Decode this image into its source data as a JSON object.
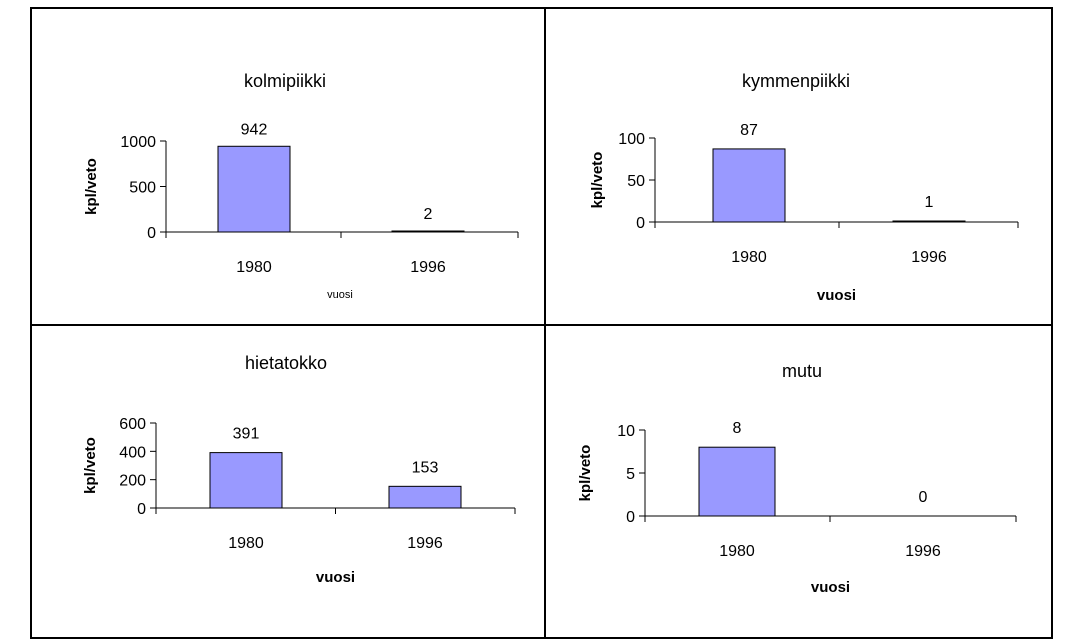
{
  "colors": {
    "bar_fill": "#9999ff",
    "bar_stroke": "#000000",
    "border": "#000000"
  },
  "chart_data": [
    {
      "type": "bar",
      "title": "kolmipiikki",
      "categories": [
        "1980",
        "1996"
      ],
      "values": [
        942,
        2
      ],
      "data_labels": [
        "942",
        "2"
      ],
      "ylim": [
        0,
        1000
      ],
      "yticks": [
        0,
        500,
        1000
      ],
      "ylabel": "kpl/veto",
      "xlabel": "vuosi",
      "grid": false
    },
    {
      "type": "bar",
      "title": "kymmenpiikki",
      "categories": [
        "1980",
        "1996"
      ],
      "values": [
        87,
        1
      ],
      "data_labels": [
        "87",
        "1"
      ],
      "ylim": [
        0,
        100
      ],
      "yticks": [
        0,
        50,
        100
      ],
      "ylabel": "kpl/veto",
      "xlabel": "vuosi",
      "grid": false
    },
    {
      "type": "bar",
      "title": "hietatokko",
      "categories": [
        "1980",
        "1996"
      ],
      "values": [
        391,
        153
      ],
      "data_labels": [
        "391",
        "153"
      ],
      "ylim": [
        0,
        600
      ],
      "yticks": [
        0,
        200,
        400,
        600
      ],
      "ylabel": "kpl/veto",
      "xlabel": "vuosi",
      "grid": false
    },
    {
      "type": "bar",
      "title": "mutu",
      "categories": [
        "1980",
        "1996"
      ],
      "values": [
        8,
        0
      ],
      "data_labels": [
        "8",
        "0"
      ],
      "ylim": [
        0,
        10
      ],
      "yticks": [
        0,
        5,
        10
      ],
      "ylabel": "kpl/veto",
      "xlabel": "vuosi",
      "grid": false
    }
  ]
}
